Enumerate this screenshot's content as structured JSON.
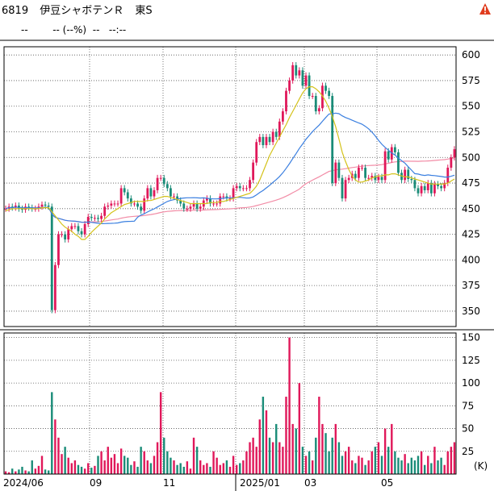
{
  "header": {
    "code": "6819",
    "name": "伊豆シャボテンＲ",
    "market": "東S",
    "price": "--",
    "change": "-- (--%)",
    "time_dash": "--",
    "time": "--:--"
  },
  "icons": {
    "warning": "warning-triangle-icon"
  },
  "colors": {
    "up": "#e0185a",
    "down": "#1a8c78",
    "ma_short": "#d4c21a",
    "ma_mid": "#3a7fe0",
    "ma_long": "#f28ca6",
    "warning": "#e03c1e"
  },
  "chart_data": [
    {
      "type": "candlestick",
      "title": "",
      "y_ticks": [
        350,
        375,
        400,
        425,
        450,
        475,
        500,
        525,
        550,
        575,
        600
      ],
      "ylim": [
        335,
        608
      ],
      "x_ticks": [
        "2024/06",
        "09",
        "11",
        "2025/01",
        "03",
        "05"
      ],
      "grid": true,
      "close": [
        450,
        452,
        451,
        453,
        450,
        449,
        452,
        451,
        450,
        450,
        452,
        454,
        453,
        452,
        351,
        395,
        425,
        425,
        420,
        430,
        433,
        433,
        428,
        425,
        435,
        442,
        441,
        441,
        440,
        443,
        452,
        453,
        455,
        455,
        455,
        470,
        466,
        460,
        455,
        455,
        452,
        448,
        460,
        470,
        462,
        468,
        480,
        480,
        474,
        470,
        462,
        462,
        458,
        455,
        450,
        450,
        452,
        455,
        450,
        452,
        458,
        460,
        455,
        455,
        455,
        462,
        462,
        460,
        460,
        470,
        472,
        470,
        470,
        470,
        478,
        495,
        515,
        520,
        512,
        520,
        515,
        525,
        520,
        535,
        545,
        565,
        575,
        590,
        580,
        585,
        570,
        580,
        560,
        560,
        545,
        548,
        570,
        565,
        560,
        475,
        495,
        480,
        460,
        478,
        480,
        484,
        480,
        490,
        490,
        480,
        480,
        482,
        478,
        481,
        478,
        506,
        498,
        510,
        505,
        485,
        478,
        488,
        479,
        478,
        470,
        465,
        472,
        468,
        475,
        465,
        474,
        472,
        470,
        475,
        490,
        500,
        508
      ],
      "ma_short": [
        448,
        449,
        450,
        450,
        450,
        450,
        450,
        450,
        450,
        450,
        450,
        451,
        451,
        451,
        447,
        443,
        439,
        435,
        432,
        430,
        428,
        425,
        423,
        420,
        420,
        423,
        427,
        430,
        433,
        436,
        440,
        443,
        446,
        448,
        450,
        452,
        454,
        455,
        456,
        457,
        457,
        457,
        457,
        458,
        458,
        459,
        460,
        461,
        462,
        462,
        461,
        460,
        459,
        458,
        457,
        456,
        455,
        455,
        455,
        455,
        455,
        455,
        456,
        456,
        456,
        457,
        457,
        458,
        459,
        460,
        461,
        462,
        463,
        464,
        465,
        468,
        472,
        478,
        486,
        494,
        502,
        508,
        514,
        520,
        526,
        532,
        539,
        545,
        551,
        557,
        563,
        567,
        569,
        569,
        567,
        564,
        560,
        555,
        548,
        540,
        530,
        518,
        505,
        496,
        488,
        482,
        478,
        476,
        476,
        477,
        478,
        480,
        481,
        482,
        482,
        483,
        483,
        484,
        484,
        483,
        482,
        481,
        481,
        480,
        479,
        478,
        477,
        476,
        475,
        474,
        474,
        474,
        474,
        474,
        475,
        477,
        479
      ]
    },
    {
      "type": "bar",
      "title": "",
      "unit": "(K)",
      "y_ticks": [
        25,
        50,
        75,
        100,
        125,
        150
      ],
      "ylim": [
        0,
        155
      ],
      "values": [
        3,
        2,
        6,
        3,
        5,
        8,
        4,
        3,
        15,
        6,
        9,
        20,
        5,
        4,
        90,
        60,
        40,
        22,
        30,
        18,
        12,
        15,
        10,
        8,
        6,
        12,
        7,
        9,
        20,
        25,
        15,
        30,
        18,
        22,
        12,
        28,
        20,
        18,
        10,
        14,
        8,
        30,
        25,
        15,
        12,
        20,
        35,
        90,
        40,
        25,
        18,
        15,
        10,
        12,
        8,
        14,
        6,
        40,
        30,
        15,
        10,
        12,
        8,
        25,
        18,
        10,
        12,
        15,
        8,
        20,
        10,
        12,
        15,
        25,
        35,
        40,
        30,
        60,
        85,
        70,
        40,
        35,
        55,
        35,
        30,
        85,
        150,
        55,
        50,
        100,
        30,
        20,
        25,
        15,
        40,
        85,
        55,
        45,
        25,
        40,
        55,
        35,
        20,
        25,
        30,
        15,
        12,
        20,
        18,
        10,
        15,
        25,
        30,
        35,
        20,
        50,
        30,
        55,
        25,
        18,
        15,
        22,
        12,
        18,
        15,
        20,
        25,
        10,
        20,
        12,
        30,
        15,
        18,
        10,
        25,
        30,
        35
      ]
    }
  ]
}
